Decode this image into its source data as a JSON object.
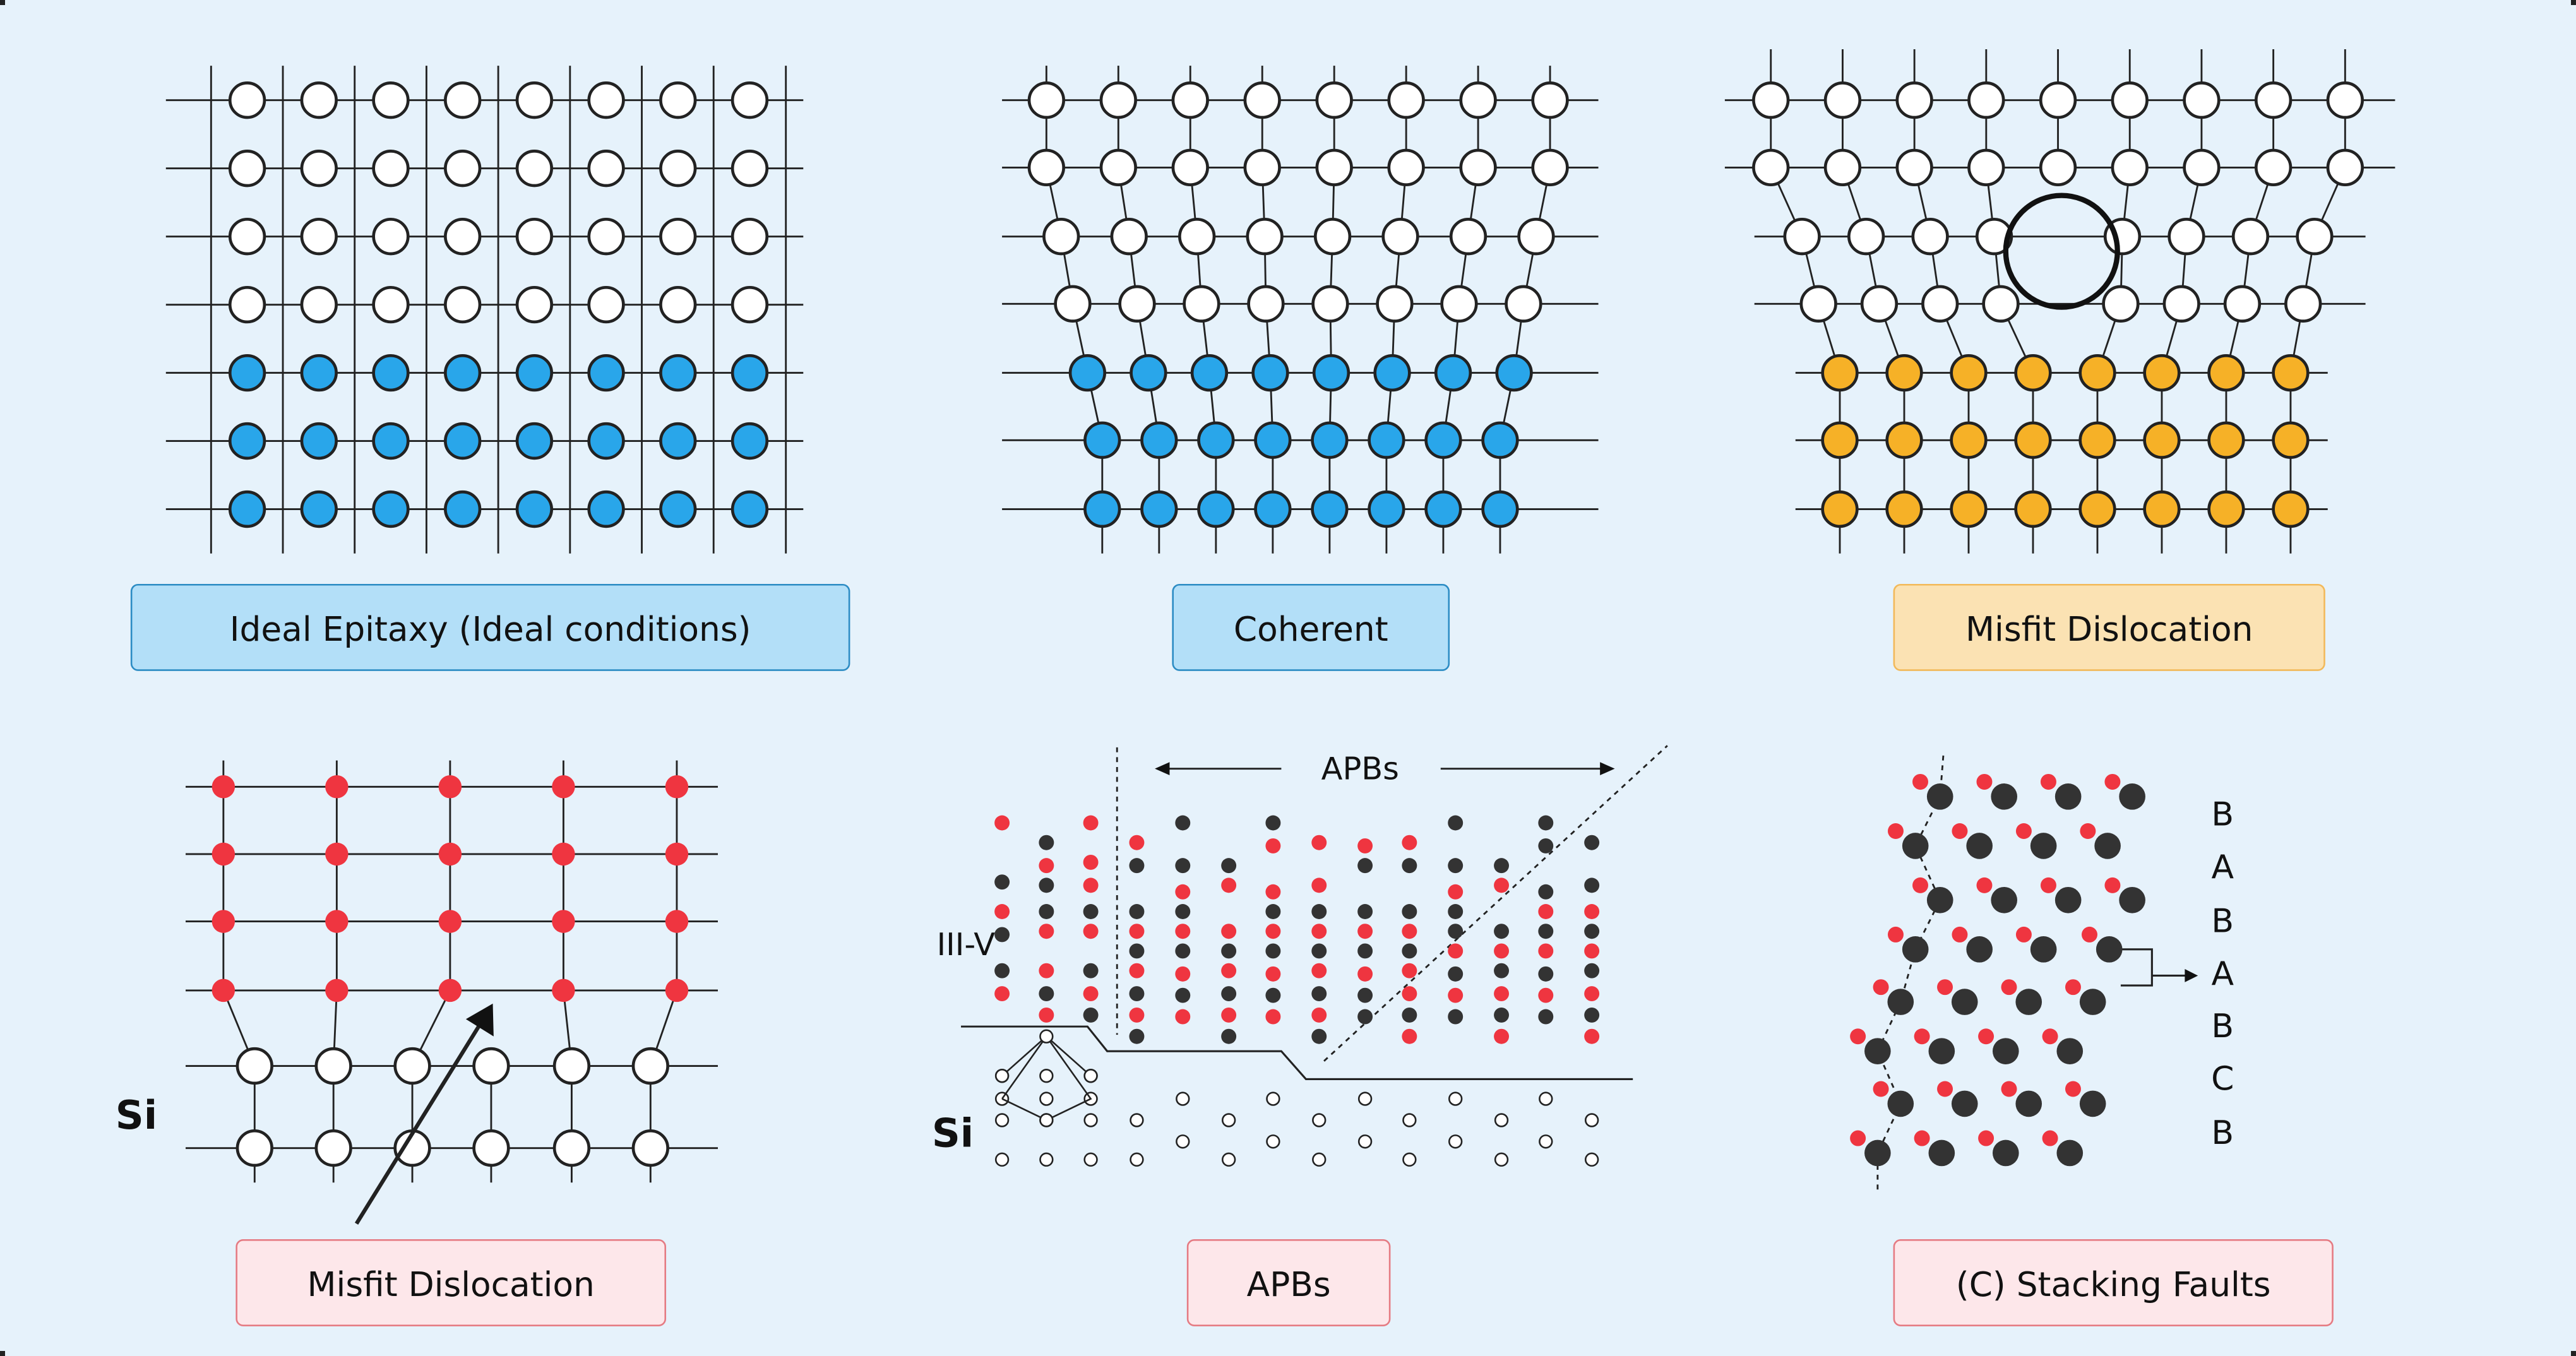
{
  "panels": [
    {
      "id": "ideal",
      "label": "Ideal Epitaxy (Ideal conditions)",
      "theme": "blue"
    },
    {
      "id": "coherent",
      "label": "Coherent",
      "theme": "blue"
    },
    {
      "id": "misfit-top",
      "label": "Misfit Dislocation",
      "theme": "orange"
    },
    {
      "id": "misfit-si",
      "label": "Misfit Dislocation",
      "theme": "red",
      "layer_label": "Si"
    },
    {
      "id": "apbs",
      "label": "APBs",
      "theme": "red",
      "arrow_label": "APBs",
      "film_label": "III-V",
      "substrate_label": "Si"
    },
    {
      "id": "stacking",
      "label": "(C) Stacking Faults",
      "theme": "red",
      "sequence": [
        "B",
        "A",
        "B",
        "A",
        "B",
        "C",
        "B"
      ]
    }
  ],
  "colors": {
    "background": "#e6f2fb",
    "blue_fill": "#29a6ea",
    "blue_label_bg": "#b3dff8",
    "blue_label_border": "#2c8cc4",
    "orange_fill": "#f6b127",
    "orange_label_bg": "#fbe2b3",
    "orange_label_border": "#f2b95a",
    "red_atom": "#ef3540",
    "red_label_bg": "#fde7ea",
    "red_label_border": "#e57b83",
    "dark_atom": "#333333",
    "line": "#222222"
  }
}
